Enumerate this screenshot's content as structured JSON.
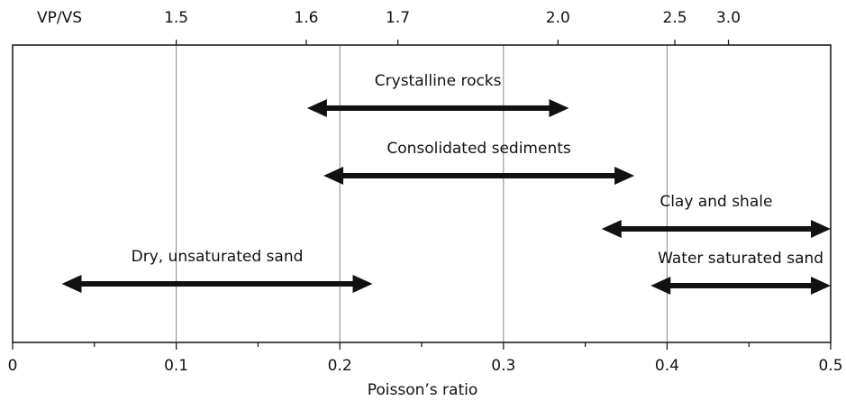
{
  "chart_data": {
    "type": "range",
    "xlabel": "Poisson’s ratio",
    "xlim": [
      0,
      0.5
    ],
    "xticks": [
      0,
      0.1,
      0.2,
      0.3,
      0.4,
      0.5
    ],
    "xminorticks": [
      0.05,
      0.15,
      0.25,
      0.35,
      0.45
    ],
    "grid": true,
    "x2label": "VP/VS",
    "x2ticks": [
      1.5,
      1.6,
      1.7,
      {
        "value": 2,
        "label": "2.0"
      },
      2.5,
      {
        "value": 3,
        "label": "3.0"
      }
    ],
    "color": "#111111",
    "ranges": [
      {
        "name": "Crystalline rocks",
        "low": 0.18,
        "high": 0.34
      },
      {
        "name": "Consolidated sediments",
        "low": 0.19,
        "high": 0.38
      },
      {
        "name": "Clay and shale",
        "low": 0.36,
        "high": 0.5
      },
      {
        "name": "Water saturated sand",
        "low": 0.39,
        "high": 0.5
      },
      {
        "name": "Dry, unsaturated sand",
        "low": 0.03,
        "high": 0.22
      }
    ]
  }
}
